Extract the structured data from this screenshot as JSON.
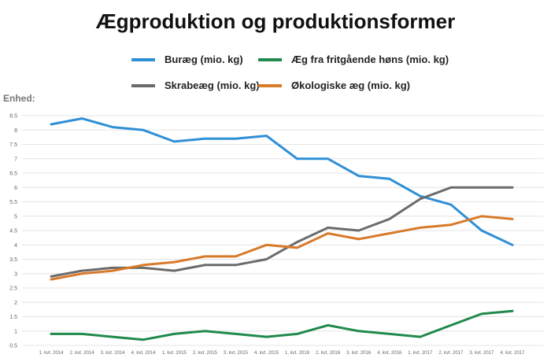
{
  "chart_data": {
    "type": "line",
    "title": "Ægproduktion og produktionsformer",
    "unit_label": "Enhed:",
    "xlabel": "",
    "ylabel": "",
    "ylim": [
      0.5,
      8.5
    ],
    "y_ticks": [
      "0.5",
      "1",
      "1.5",
      "2",
      "2.5",
      "3",
      "3.5",
      "4",
      "4.5",
      "5",
      "5.5",
      "6",
      "6.5",
      "7",
      "7.5",
      "8",
      "8.5"
    ],
    "grid": true,
    "legend_position": "top",
    "categories": [
      "1. kvt. 2014",
      "2. kvt. 2014",
      "3. kvt. 2014",
      "4. kvt. 2014",
      "1. kvt. 2015",
      "2. kvt. 2015",
      "3. kvt. 2015",
      "4. kvt. 2015",
      "1. kvt. 2016",
      "2. kvt. 2016",
      "3. kvt. 2016",
      "4. kvt. 2016",
      "1. kvt. 2017",
      "2. kvt. 2017",
      "3. kvt. 2017",
      "4. kvt. 2017"
    ],
    "series": [
      {
        "name": "Buræg (mio. kg)",
        "color": "#2f8fd6",
        "values": [
          8.2,
          8.4,
          8.1,
          8.0,
          7.6,
          7.7,
          7.7,
          7.8,
          7.0,
          7.0,
          6.4,
          6.3,
          5.7,
          5.4,
          4.5,
          4.0
        ]
      },
      {
        "name": "Æg fra fritgående høns (mio. kg)",
        "color": "#1f8a4c",
        "values": [
          0.9,
          0.9,
          0.8,
          0.7,
          0.9,
          1.0,
          0.9,
          0.8,
          0.9,
          1.2,
          1.0,
          0.9,
          0.8,
          1.2,
          1.6,
          1.7
        ]
      },
      {
        "name": "Skrabeæg (mio. kg)",
        "color": "#6b6b6b",
        "values": [
          2.9,
          3.1,
          3.2,
          3.2,
          3.1,
          3.3,
          3.3,
          3.5,
          4.1,
          4.6,
          4.5,
          4.9,
          5.6,
          6.0,
          6.0,
          6.0
        ]
      },
      {
        "name": "Økologiske æg (mio. kg)",
        "color": "#d87a2a",
        "values": [
          2.8,
          3.0,
          3.1,
          3.3,
          3.4,
          3.6,
          3.6,
          4.0,
          3.9,
          4.4,
          4.2,
          4.4,
          4.6,
          4.7,
          5.0,
          4.9
        ]
      }
    ]
  }
}
